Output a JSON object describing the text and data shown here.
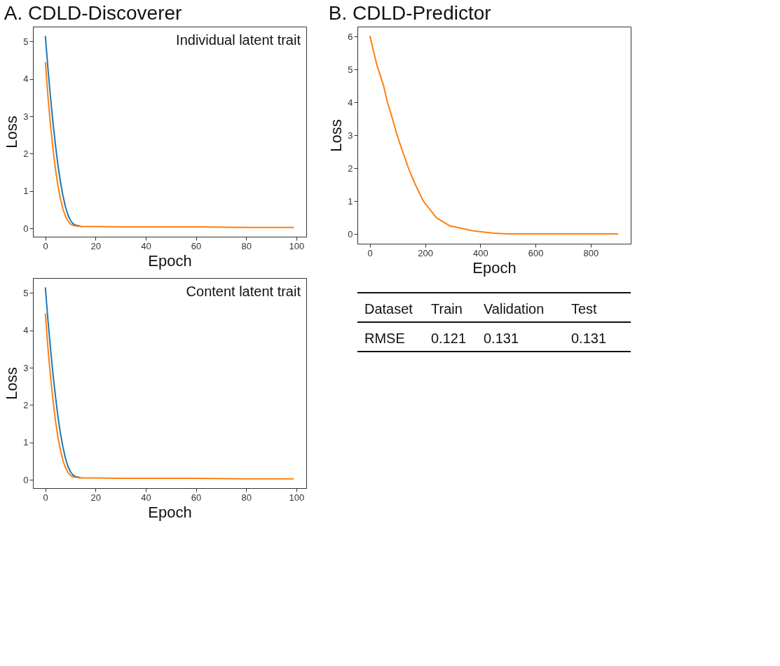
{
  "chart_data": [
    {
      "type": "line",
      "title": "A. CDLD-Discoverer",
      "xlabel": "Epoch",
      "ylabel": "Loss",
      "annotations": [
        "Individual latent trait"
      ],
      "x": [
        0,
        1,
        2,
        3,
        4,
        5,
        6,
        7,
        8,
        9,
        10,
        11,
        12,
        14,
        16,
        20,
        30,
        40,
        60,
        80,
        99
      ],
      "series": [
        {
          "color": "#1f77b4",
          "values": [
            5.15,
            4.3,
            3.55,
            2.85,
            2.25,
            1.7,
            1.25,
            0.88,
            0.58,
            0.36,
            0.22,
            0.13,
            0.09,
            0.06,
            null,
            null,
            null,
            null,
            null,
            null,
            null
          ]
        },
        {
          "color": "#ff7f0e",
          "values": [
            4.45,
            3.55,
            2.8,
            2.15,
            1.6,
            1.15,
            0.8,
            0.52,
            0.33,
            0.2,
            0.12,
            0.08,
            0.07,
            0.05,
            0.05,
            0.05,
            0.04,
            0.04,
            0.04,
            0.03,
            0.03
          ]
        }
      ],
      "xlim": [
        -4.95,
        103.95
      ],
      "xticks": [
        0,
        20,
        40,
        60,
        80,
        100
      ],
      "ylim": [
        -0.22,
        5.4
      ],
      "yticks": [
        0,
        1,
        2,
        3,
        4,
        5
      ],
      "grid": false,
      "legend": false,
      "marker": "none",
      "line_style": "solid"
    },
    {
      "type": "line",
      "xlabel": "Epoch",
      "ylabel": "Loss",
      "annotations": [
        "Content latent trait"
      ],
      "x": [
        0,
        1,
        2,
        3,
        4,
        5,
        6,
        7,
        8,
        9,
        10,
        11,
        12,
        14,
        16,
        20,
        30,
        40,
        60,
        80,
        99
      ],
      "series": [
        {
          "color": "#1f77b4",
          "values": [
            5.15,
            4.3,
            3.55,
            2.85,
            2.25,
            1.7,
            1.25,
            0.88,
            0.58,
            0.36,
            0.22,
            0.13,
            0.09,
            0.06,
            null,
            null,
            null,
            null,
            null,
            null,
            null
          ]
        },
        {
          "color": "#ff7f0e",
          "values": [
            4.45,
            3.55,
            2.8,
            2.15,
            1.6,
            1.15,
            0.8,
            0.52,
            0.33,
            0.2,
            0.12,
            0.08,
            0.07,
            0.05,
            0.05,
            0.05,
            0.04,
            0.04,
            0.04,
            0.03,
            0.03
          ]
        }
      ],
      "xlim": [
        -4.95,
        103.95
      ],
      "xticks": [
        0,
        20,
        40,
        60,
        80,
        100
      ],
      "ylim": [
        -0.22,
        5.4
      ],
      "yticks": [
        0,
        1,
        2,
        3,
        4,
        5
      ],
      "grid": false,
      "legend": false,
      "marker": "none",
      "line_style": "solid"
    },
    {
      "type": "line",
      "title": "B. CDLD-Predictor",
      "xlabel": "Epoch",
      "ylabel": "Loss",
      "x": [
        0,
        25,
        50,
        64,
        75,
        99,
        115,
        140,
        165,
        194,
        241,
        290,
        376,
        450,
        500,
        600,
        700,
        800,
        900
      ],
      "series": [
        {
          "color": "#ff7f0e",
          "values": [
            6.02,
            5.15,
            4.5,
            4.0,
            3.7,
            3.0,
            2.6,
            2.0,
            1.5,
            1.0,
            0.5,
            0.25,
            0.1,
            0.03,
            0.01,
            0.01,
            0.01,
            0.01,
            0.01
          ]
        }
      ],
      "xlim": [
        -45,
        945
      ],
      "xticks": [
        0,
        200,
        400,
        600,
        800
      ],
      "ylim": [
        -0.29,
        6.3
      ],
      "yticks": [
        0,
        1,
        2,
        3,
        4,
        5,
        6
      ],
      "grid": false,
      "legend": false,
      "marker": "none",
      "line_style": "solid"
    },
    {
      "type": "other",
      "xlabel": "Dataset",
      "ylabel": "RMSE",
      "categories": [
        "Train",
        "Validation",
        "Test"
      ],
      "values": [
        0.121,
        0.131,
        0.131
      ],
      "data_labels": true
    }
  ]
}
